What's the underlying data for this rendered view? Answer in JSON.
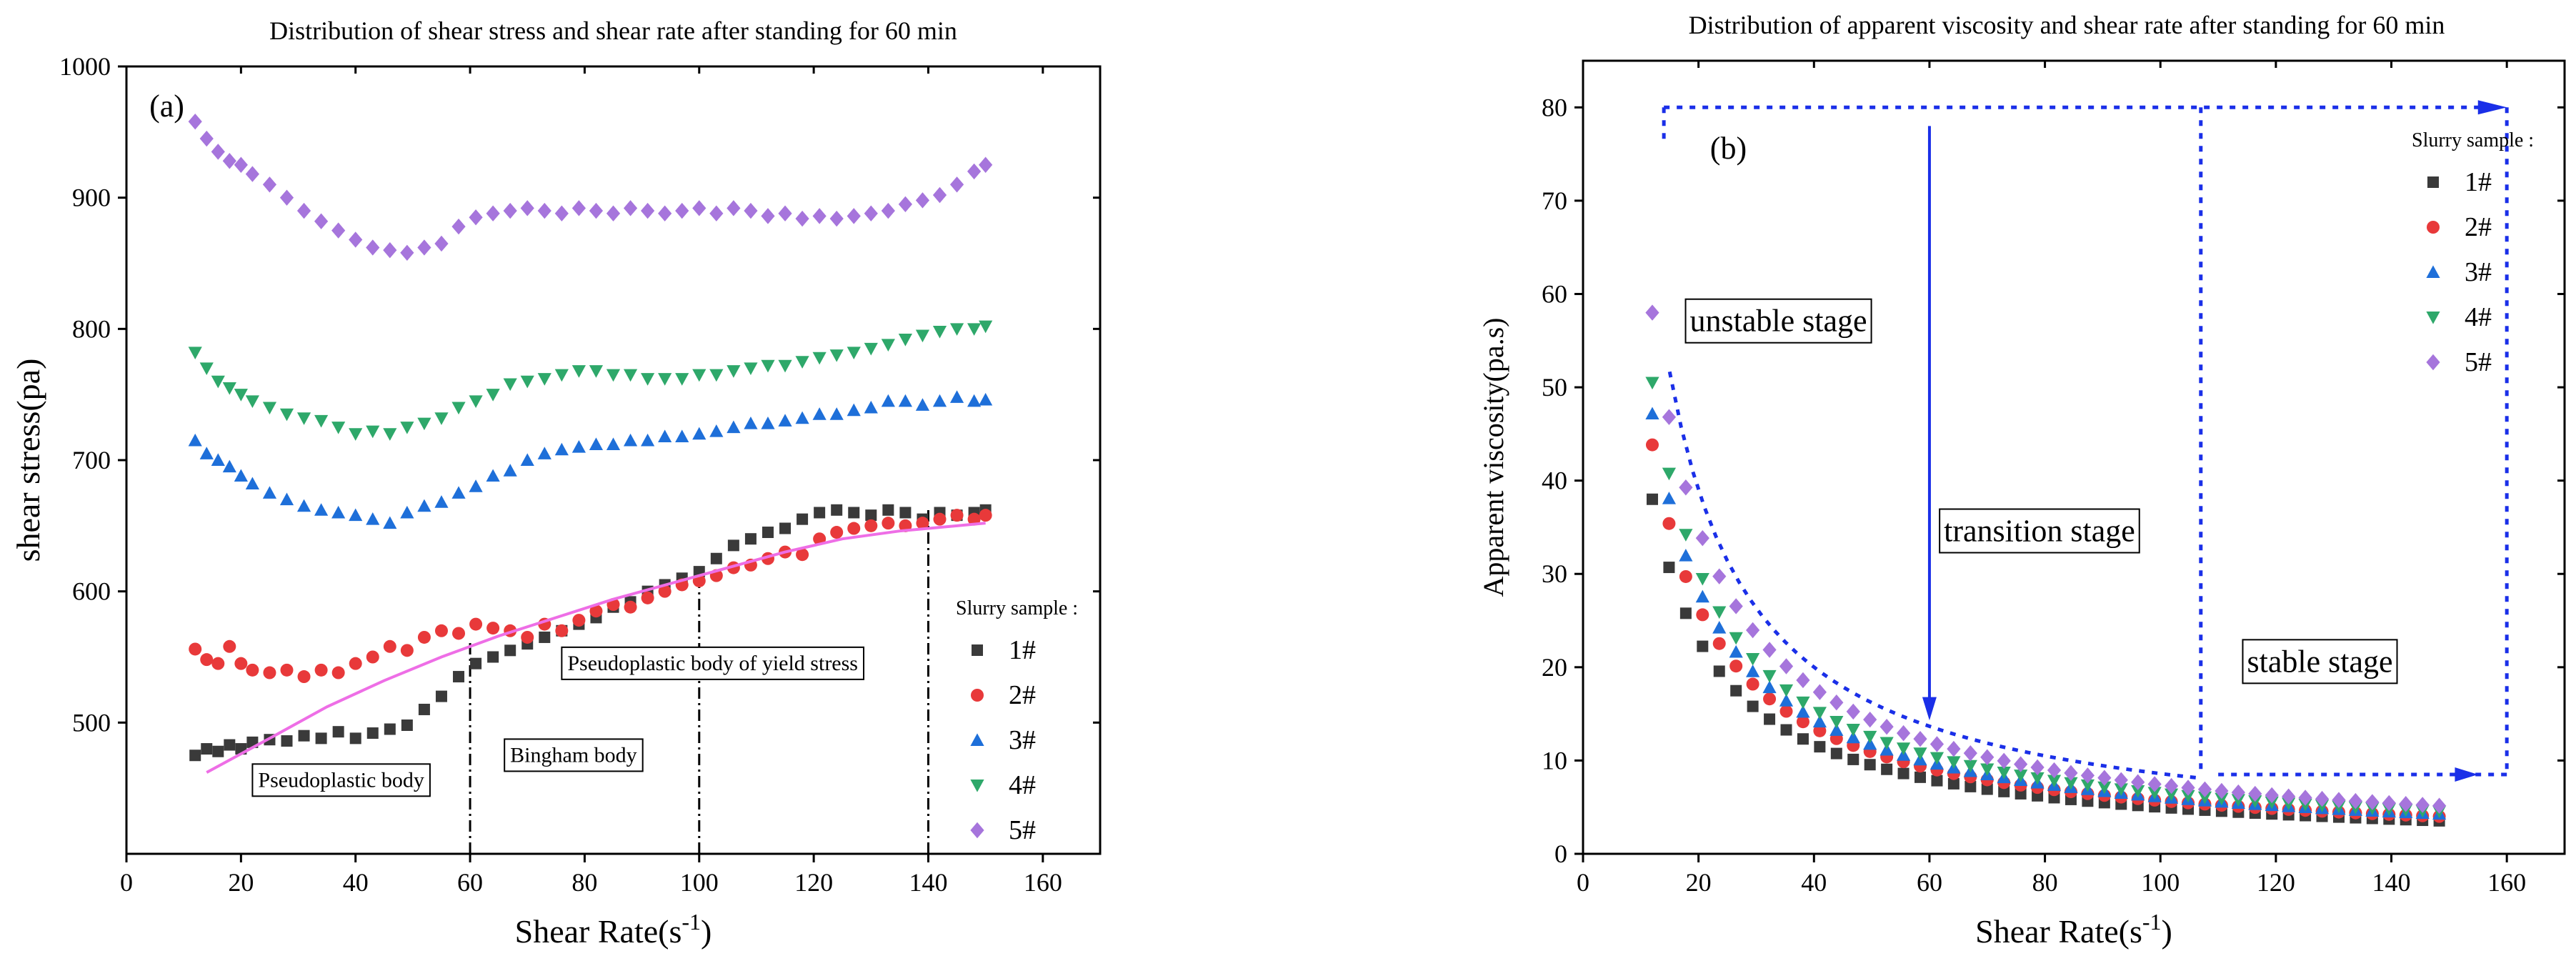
{
  "chart_data": [
    {
      "type": "scatter",
      "panel": "(a)",
      "title": "Distribution of shear stress and shear rate after standing for 60 min",
      "xlabel": "Shear Rate(s",
      "xlabel_sup": "-1",
      "xlabel_close": ")",
      "ylabel": "shear stress(pa)",
      "xlim": [
        0,
        170
      ],
      "ylim": [
        400,
        1000
      ],
      "xticks": [
        0,
        20,
        40,
        60,
        80,
        100,
        120,
        140,
        160
      ],
      "yticks": [
        500,
        600,
        700,
        800,
        900,
        1000
      ],
      "legend_title": "Slurry sample :",
      "series": [
        {
          "name": "1#",
          "marker": "square",
          "color": "#3a3a3a",
          "x": [
            12,
            14,
            16,
            18,
            20,
            22,
            25,
            28,
            31,
            34,
            37,
            40,
            43,
            46,
            49,
            52,
            55,
            58,
            61,
            64,
            67,
            70,
            73,
            76,
            79,
            82,
            85,
            88,
            91,
            94,
            97,
            100,
            103,
            106,
            109,
            112,
            115,
            118,
            121,
            124,
            127,
            130,
            133,
            136,
            139,
            142,
            145,
            148,
            150
          ],
          "y": [
            475,
            480,
            478,
            483,
            480,
            485,
            487,
            486,
            490,
            488,
            493,
            488,
            492,
            495,
            498,
            510,
            520,
            535,
            545,
            550,
            555,
            560,
            565,
            570,
            575,
            580,
            588,
            592,
            600,
            605,
            610,
            615,
            625,
            635,
            640,
            645,
            648,
            655,
            660,
            662,
            660,
            658,
            662,
            660,
            655,
            660,
            658,
            660,
            662
          ]
        },
        {
          "name": "2#",
          "marker": "circle",
          "color": "#e8393a",
          "x": [
            12,
            14,
            16,
            18,
            20,
            22,
            25,
            28,
            31,
            34,
            37,
            40,
            43,
            46,
            49,
            52,
            55,
            58,
            61,
            64,
            67,
            70,
            73,
            76,
            79,
            82,
            85,
            88,
            91,
            94,
            97,
            100,
            103,
            106,
            109,
            112,
            115,
            118,
            121,
            124,
            127,
            130,
            133,
            136,
            139,
            142,
            145,
            148,
            150
          ],
          "y": [
            556,
            548,
            545,
            558,
            545,
            540,
            538,
            540,
            535,
            540,
            538,
            545,
            550,
            558,
            555,
            565,
            570,
            568,
            575,
            572,
            570,
            565,
            575,
            570,
            578,
            585,
            590,
            588,
            595,
            600,
            605,
            608,
            612,
            618,
            620,
            625,
            630,
            628,
            640,
            645,
            648,
            650,
            652,
            650,
            652,
            655,
            658,
            655,
            658
          ]
        },
        {
          "name": "3#",
          "marker": "triangle-up",
          "color": "#1e6fd9",
          "x": [
            12,
            14,
            16,
            18,
            20,
            22,
            25,
            28,
            31,
            34,
            37,
            40,
            43,
            46,
            49,
            52,
            55,
            58,
            61,
            64,
            67,
            70,
            73,
            76,
            79,
            82,
            85,
            88,
            91,
            94,
            97,
            100,
            103,
            106,
            109,
            112,
            115,
            118,
            121,
            124,
            127,
            130,
            133,
            136,
            139,
            142,
            145,
            148,
            150
          ],
          "y": [
            715,
            705,
            700,
            695,
            688,
            682,
            675,
            670,
            665,
            662,
            660,
            658,
            655,
            652,
            660,
            665,
            668,
            675,
            680,
            688,
            692,
            700,
            705,
            708,
            710,
            712,
            712,
            715,
            715,
            718,
            718,
            720,
            722,
            725,
            728,
            728,
            730,
            732,
            735,
            735,
            738,
            740,
            745,
            745,
            742,
            745,
            748,
            745,
            746
          ]
        },
        {
          "name": "4#",
          "marker": "triangle-down",
          "color": "#2ea86a",
          "x": [
            12,
            14,
            16,
            18,
            20,
            22,
            25,
            28,
            31,
            34,
            37,
            40,
            43,
            46,
            49,
            52,
            55,
            58,
            61,
            64,
            67,
            70,
            73,
            76,
            79,
            82,
            85,
            88,
            91,
            94,
            97,
            100,
            103,
            106,
            109,
            112,
            115,
            118,
            121,
            124,
            127,
            130,
            133,
            136,
            139,
            142,
            145,
            148,
            150
          ],
          "y": [
            782,
            770,
            760,
            755,
            750,
            745,
            740,
            735,
            732,
            730,
            725,
            720,
            722,
            720,
            725,
            728,
            732,
            740,
            745,
            750,
            758,
            760,
            762,
            765,
            768,
            768,
            765,
            765,
            762,
            762,
            762,
            765,
            765,
            768,
            770,
            772,
            772,
            775,
            778,
            780,
            782,
            785,
            788,
            792,
            795,
            798,
            800,
            800,
            802
          ]
        },
        {
          "name": "5#",
          "marker": "diamond",
          "color": "#a675dc",
          "x": [
            12,
            14,
            16,
            18,
            20,
            22,
            25,
            28,
            31,
            34,
            37,
            40,
            43,
            46,
            49,
            52,
            55,
            58,
            61,
            64,
            67,
            70,
            73,
            76,
            79,
            82,
            85,
            88,
            91,
            94,
            97,
            100,
            103,
            106,
            109,
            112,
            115,
            118,
            121,
            124,
            127,
            130,
            133,
            136,
            139,
            142,
            145,
            148,
            150
          ],
          "y": [
            958,
            945,
            935,
            928,
            925,
            918,
            910,
            900,
            890,
            882,
            875,
            868,
            862,
            860,
            858,
            862,
            865,
            878,
            885,
            888,
            890,
            892,
            890,
            888,
            892,
            890,
            888,
            892,
            890,
            888,
            890,
            892,
            888,
            892,
            890,
            886,
            888,
            884,
            886,
            884,
            886,
            888,
            890,
            895,
            898,
            902,
            910,
            920,
            925
          ]
        }
      ],
      "fit_line": {
        "name": "fit",
        "color": "#ee6ee6",
        "x": [
          14,
          25,
          35,
          45,
          55,
          65,
          75,
          85,
          95,
          105,
          115,
          125,
          135,
          145,
          150
        ],
        "y": [
          462,
          488,
          512,
          532,
          550,
          566,
          580,
          594,
          606,
          618,
          630,
          640,
          646,
          650,
          652
        ]
      },
      "vlines": [
        60,
        100,
        140
      ],
      "annotations": [
        "Pseudoplastic body",
        "Bingham body",
        "Pseudoplastic body of yield stress"
      ]
    },
    {
      "type": "scatter",
      "panel": "(b)",
      "title": "Distribution of apparent viscosity and shear rate after standing for 60 min",
      "xlabel": "Shear Rate(s",
      "xlabel_sup": "-1",
      "xlabel_close": ")",
      "ylabel": "Apparent viscosity(pa.s)",
      "xlim": [
        0,
        170
      ],
      "ylim": [
        0,
        85
      ],
      "xticks": [
        0,
        20,
        40,
        60,
        80,
        100,
        120,
        140,
        160
      ],
      "yticks": [
        0,
        10,
        20,
        30,
        40,
        50,
        60,
        70,
        80
      ],
      "legend_title": "Slurry sample :",
      "series": [
        {
          "name": "1#",
          "marker": "square",
          "color": "#3a3a3a",
          "k": 450
        },
        {
          "name": "2#",
          "marker": "circle",
          "color": "#e8393a",
          "k": 520
        },
        {
          "name": "3#",
          "marker": "triangle-up",
          "color": "#1e6fd9",
          "k": 560
        },
        {
          "name": "4#",
          "marker": "triangle-down",
          "color": "#2ea86a",
          "k": 600
        },
        {
          "name": "5#",
          "marker": "diamond",
          "color": "#a675dc",
          "k": 690
        }
      ],
      "annotations": [
        "unstable stage",
        "transition stage",
        "stable stage"
      ]
    }
  ]
}
